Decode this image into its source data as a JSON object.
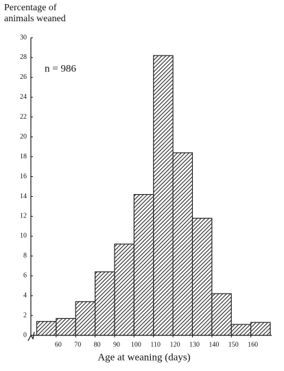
{
  "chart_data": {
    "type": "histogram",
    "ylabel": "Percentage of animals weaned",
    "xlabel": "Age at weaning (days)",
    "annotation": "n = 986",
    "bins": [
      50,
      60,
      70,
      80,
      90,
      100,
      110,
      120,
      130,
      140,
      150,
      160,
      170
    ],
    "values": [
      1.4,
      1.7,
      3.4,
      6.4,
      9.2,
      14.2,
      28.2,
      18.4,
      11.8,
      4.2,
      1.1,
      1.3
    ],
    "color": "#222222",
    "xlim": [
      47,
      170
    ],
    "xticks": [
      60,
      70,
      80,
      90,
      100,
      110,
      120,
      130,
      140,
      150,
      160
    ],
    "ylim": [
      0,
      30
    ],
    "yticks": [
      0,
      2,
      4,
      6,
      8,
      10,
      12,
      14,
      16,
      18,
      20,
      22,
      24,
      26,
      28,
      30
    ],
    "grid": false
  }
}
